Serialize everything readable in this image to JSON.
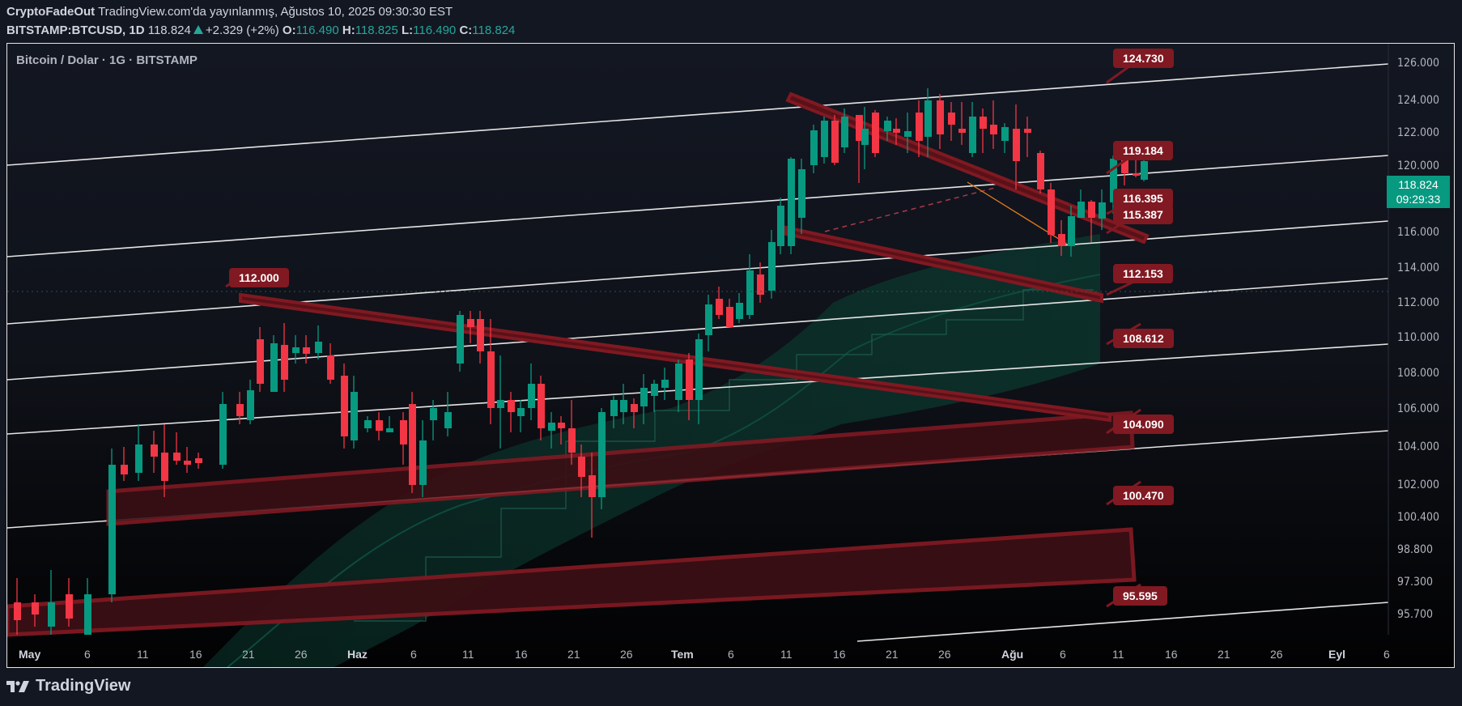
{
  "header": {
    "author": "CryptoFadeOut",
    "published": "TradingView.com'da yayınlanmış, Ağustos 10, 2025 09:30:30 EST",
    "symbol": "BITSTAMP:BTCUSD, 1D",
    "last": "118.824",
    "change": "+2.329 (+2%)",
    "o_label": "O:",
    "o": "116.490",
    "h_label": "H:",
    "h": "118.825",
    "l_label": "L:",
    "l": "116.490",
    "c_label": "C:",
    "c": "118.824"
  },
  "chart": {
    "legend": "Bitcoin / Dolar · 1G · BITSTAMP",
    "last_price": "118.824",
    "countdown": "09:29:33",
    "colors": {
      "up": "#089981",
      "down": "#f23645",
      "zone": "#801922",
      "accent": "#26a69a"
    },
    "price_axis": [
      "126.000",
      "124.000",
      "122.000",
      "120.000",
      "116.000",
      "114.000",
      "112.000",
      "110.000",
      "108.000",
      "106.000",
      "104.000",
      "102.000",
      "100.400",
      "98.800",
      "97.300",
      "95.700"
    ],
    "time_axis": [
      {
        "label": "May",
        "major": true
      },
      {
        "label": "6"
      },
      {
        "label": "11"
      },
      {
        "label": "16"
      },
      {
        "label": "21"
      },
      {
        "label": "26"
      },
      {
        "label": "Haz",
        "major": true
      },
      {
        "label": "6"
      },
      {
        "label": "11"
      },
      {
        "label": "16"
      },
      {
        "label": "21"
      },
      {
        "label": "26"
      },
      {
        "label": "Tem",
        "major": true
      },
      {
        "label": "6"
      },
      {
        "label": "11"
      },
      {
        "label": "16"
      },
      {
        "label": "21"
      },
      {
        "label": "26"
      },
      {
        "label": "Ağu",
        "major": true
      },
      {
        "label": "6"
      },
      {
        "label": "11"
      },
      {
        "label": "16"
      },
      {
        "label": "21"
      },
      {
        "label": "26"
      },
      {
        "label": "Eyl",
        "major": true
      },
      {
        "label": "6"
      }
    ],
    "callouts": [
      "124.730",
      "119.184",
      "116.395",
      "115.387",
      "112.153",
      "108.612",
      "104.090",
      "100.470",
      "95.595",
      "112.000"
    ]
  },
  "footer": {
    "brand": "TradingView"
  }
}
